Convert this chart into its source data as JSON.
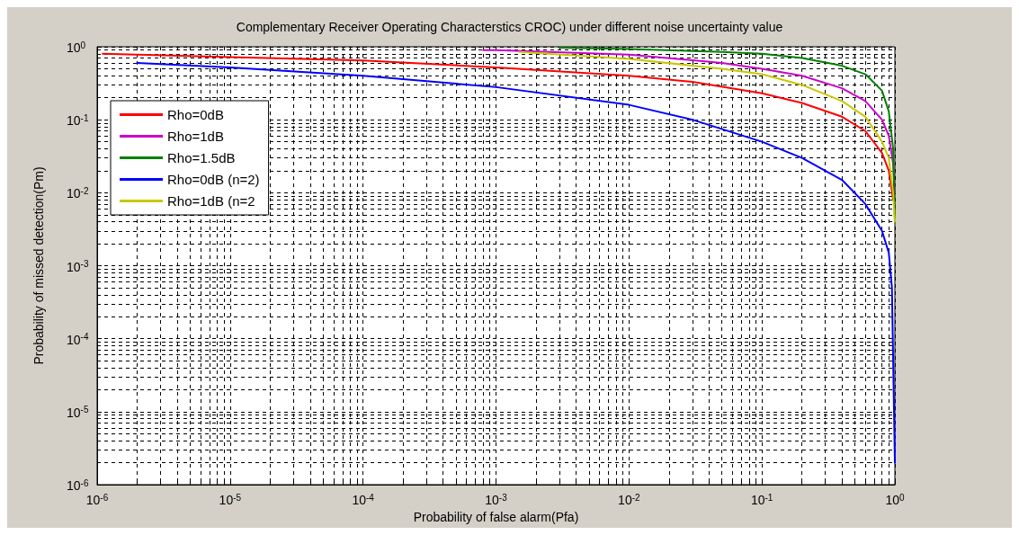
{
  "chart_data": {
    "type": "line",
    "title": "Complementary Receiver Operating Characterstics CROC) under different noise uncertainty value",
    "xlabel": "Probability of false alarm(Pfa)",
    "ylabel": "Probability of missed detection(Pm)",
    "log": "xy",
    "grid": true,
    "legend": "top left",
    "line_style": "solid",
    "marker": "none",
    "xlim": [
      1e-06,
      1
    ],
    "ylim": [
      1e-06,
      1
    ],
    "xticks": [
      {
        "value": 1e-06,
        "label": "10$^{-6}$"
      },
      {
        "value": 1e-05,
        "label": "10$^{-5}$"
      },
      {
        "value": 0.0001,
        "label": "10$^{-4}$"
      },
      {
        "value": 0.001,
        "label": "10$^{-3}$"
      },
      {
        "value": 0.01,
        "label": "10$^{-2}$"
      },
      {
        "value": 0.1,
        "label": "10$^{-1}$"
      },
      {
        "value": 1,
        "label": "10$^{0}$"
      }
    ],
    "yticks": [
      {
        "value": 1e-06,
        "label": "10$^{-6}$"
      },
      {
        "value": 1e-05,
        "label": "10$^{-5}$"
      },
      {
        "value": 0.0001,
        "label": "10$^{-4}$"
      },
      {
        "value": 0.001,
        "label": "10$^{-3}$"
      },
      {
        "value": 0.01,
        "label": "10$^{-2}$"
      },
      {
        "value": 0.1,
        "label": "10$^{-1}$"
      },
      {
        "value": 1,
        "label": "10$^{0}$"
      }
    ],
    "series": [
      {
        "name": "Rho=0dB",
        "color": "#ff0000",
        "x": [
          1.1e-06,
          1e-05,
          0.0001,
          0.001,
          0.01,
          0.03,
          0.1,
          0.2,
          0.4,
          0.6,
          0.8,
          0.9,
          0.97
        ],
        "values": [
          0.8,
          0.72,
          0.65,
          0.52,
          0.4,
          0.33,
          0.23,
          0.17,
          0.11,
          0.07,
          0.035,
          0.02,
          0.008
        ]
      },
      {
        "name": "Rho=1dB",
        "color": "#cc00cc",
        "x": [
          0.0008,
          0.001,
          0.01,
          0.05,
          0.1,
          0.2,
          0.4,
          0.6,
          0.8,
          0.9,
          0.97,
          1
        ],
        "values": [
          0.9,
          0.9,
          0.78,
          0.6,
          0.5,
          0.4,
          0.27,
          0.18,
          0.1,
          0.06,
          0.025,
          0.01
        ]
      },
      {
        "name": "Rho=1.5dB",
        "color": "#008000",
        "x": [
          0.003,
          0.01,
          0.05,
          0.1,
          0.2,
          0.4,
          0.6,
          0.8,
          0.9,
          0.97,
          1
        ],
        "values": [
          0.97,
          0.93,
          0.85,
          0.8,
          0.7,
          0.55,
          0.42,
          0.25,
          0.13,
          0.04,
          0.004
        ]
      },
      {
        "name": "Rho=0dB (n=2)",
        "color": "#0000ff",
        "x": [
          2e-06,
          1e-05,
          0.0001,
          0.001,
          0.01,
          0.03,
          0.1,
          0.2,
          0.4,
          0.6,
          0.8,
          0.9,
          0.95,
          1
        ],
        "values": [
          0.6,
          0.52,
          0.4,
          0.28,
          0.16,
          0.1,
          0.05,
          0.03,
          0.015,
          0.007,
          0.003,
          0.0015,
          0.0005,
          2e-06
        ]
      },
      {
        "name": "Rho=1dB (n=2",
        "color": "#c8c800",
        "x": [
          0.0015,
          0.01,
          0.05,
          0.1,
          0.2,
          0.4,
          0.6,
          0.8,
          0.9,
          0.97,
          1
        ],
        "values": [
          0.85,
          0.68,
          0.5,
          0.42,
          0.3,
          0.18,
          0.11,
          0.05,
          0.03,
          0.01,
          0.004
        ]
      }
    ]
  }
}
